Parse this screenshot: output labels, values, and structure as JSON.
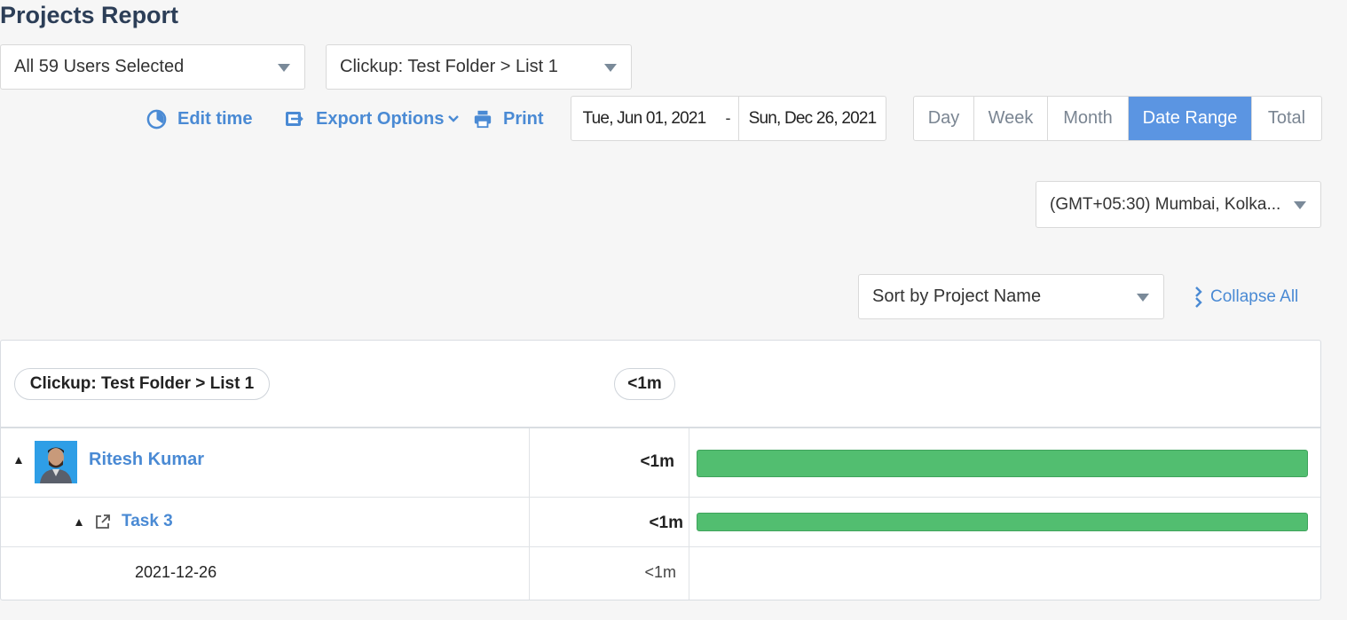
{
  "page": {
    "title": "Projects Report"
  },
  "filters": {
    "users_select": "All 59 Users Selected",
    "project_select": "Clickup: Test Folder > List 1"
  },
  "toolbar": {
    "edit_time": "Edit time",
    "export_options": "Export Options",
    "print": "Print"
  },
  "date_range": {
    "start": "Tue, Jun 01, 2021",
    "separator": "-",
    "end": "Sun, Dec 26, 2021"
  },
  "range_tabs": [
    {
      "label": "Day",
      "active": false
    },
    {
      "label": "Week",
      "active": false
    },
    {
      "label": "Month",
      "active": false
    },
    {
      "label": "Date Range",
      "active": true
    },
    {
      "label": "Total",
      "active": false
    }
  ],
  "timezone": "(GMT+05:30) Mumbai, Kolka...",
  "sort_select": "Sort by Project Name",
  "collapse_all": "Collapse All",
  "report": {
    "project_pill": "Clickup: Test Folder > List 1",
    "project_total": "<1m",
    "rows": [
      {
        "name": "Ritesh Kumar",
        "time": "<1m",
        "bar_fraction": 1.0,
        "level": "user"
      },
      {
        "name": "Task 3",
        "time": "<1m",
        "bar_fraction": 1.0,
        "level": "task"
      },
      {
        "name": "2021-12-26",
        "time": "<1m",
        "level": "date"
      }
    ]
  },
  "colors": {
    "accent": "#4a8ad4",
    "active_tab": "#5b95e2",
    "bar": "#52be70",
    "title": "#2c3e57"
  }
}
